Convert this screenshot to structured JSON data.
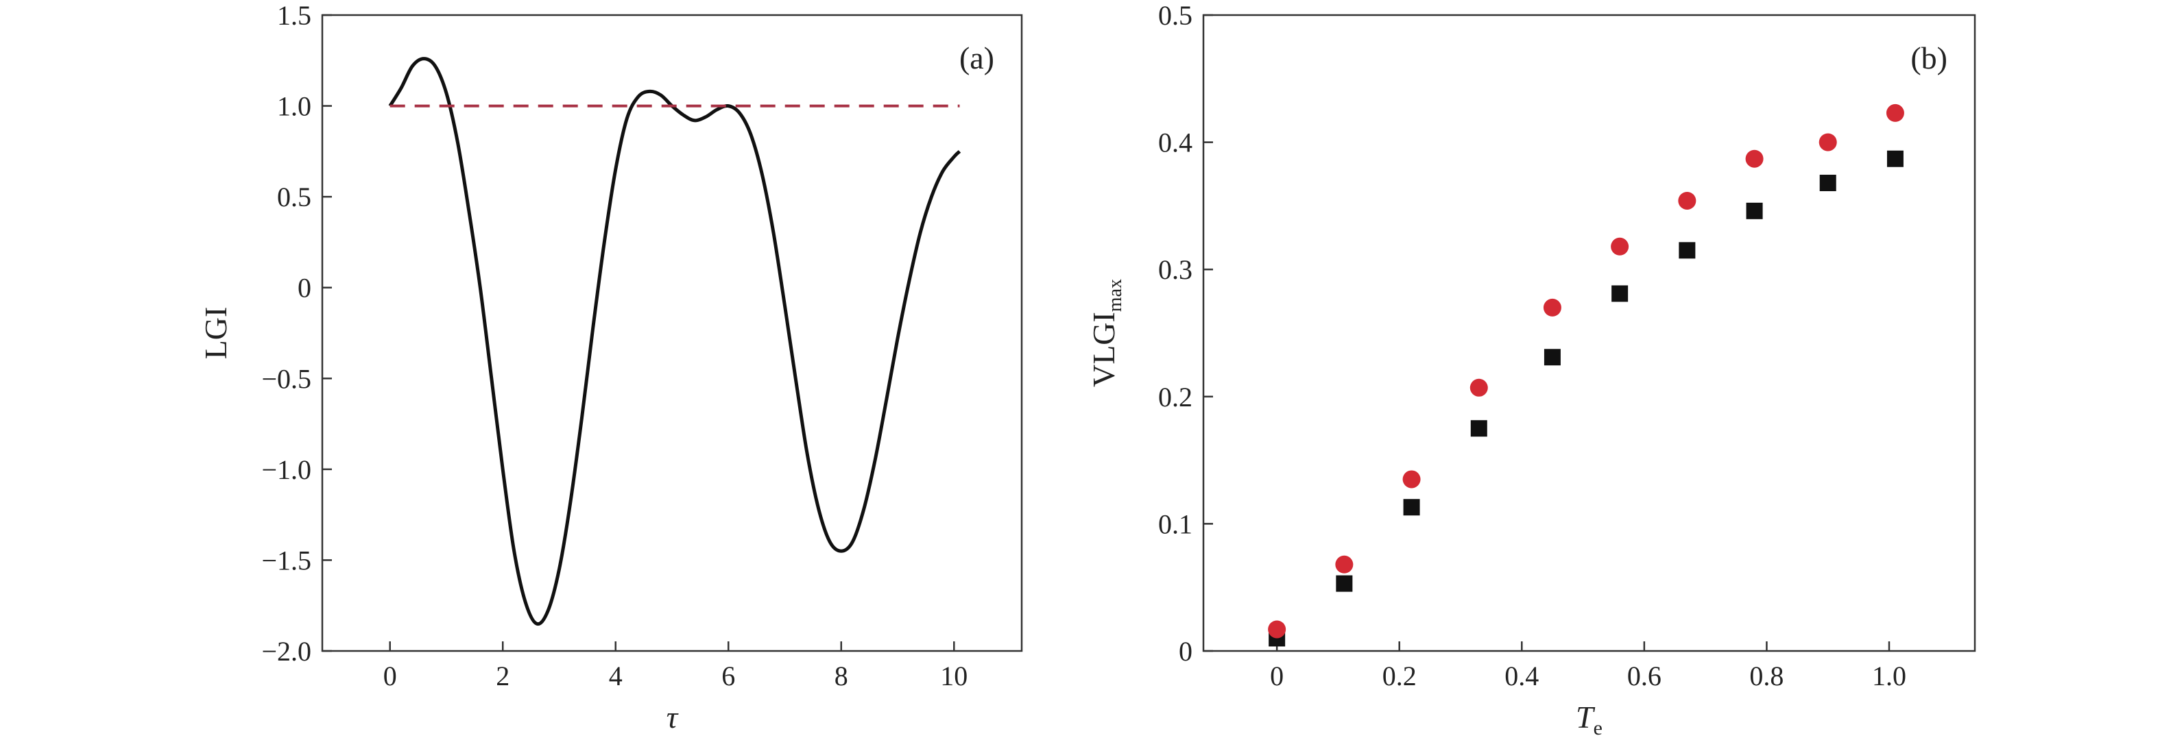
{
  "chart_data": [
    {
      "type": "line",
      "panel_label": "(a)",
      "xlabel": "τ",
      "ylabel": "LGI",
      "xlim": [
        -1.2,
        11.2
      ],
      "ylim": [
        -2.0,
        1.5
      ],
      "xticks": [
        0,
        2,
        4,
        6,
        8,
        10
      ],
      "xtick_labels": [
        "0",
        "2",
        "4",
        "6",
        "8",
        "10"
      ],
      "yticks": [
        -2.0,
        -1.5,
        -1.0,
        -0.5,
        0,
        0.5,
        1.0,
        1.5
      ],
      "ytick_labels": [
        "−2.0",
        "−1.5",
        "−1.0",
        "−0.5",
        "0",
        "0.5",
        "1.0",
        "1.5"
      ],
      "grid": false,
      "series": [
        {
          "style": "solid",
          "color": "#111111",
          "x": [
            0.0,
            0.2,
            0.4,
            0.6,
            0.8,
            1.0,
            1.2,
            1.4,
            1.6,
            1.8,
            2.0,
            2.2,
            2.4,
            2.6,
            2.8,
            3.0,
            3.2,
            3.4,
            3.6,
            3.8,
            4.0,
            4.2,
            4.4,
            4.6,
            4.8,
            5.0,
            5.2,
            5.4,
            5.6,
            5.8,
            6.0,
            6.2,
            6.4,
            6.6,
            6.8,
            7.0,
            7.2,
            7.4,
            7.6,
            7.8,
            8.0,
            8.2,
            8.4,
            8.6,
            8.8,
            9.0,
            9.2,
            9.4,
            9.6,
            9.8,
            10.0,
            10.1
          ],
          "y": [
            1.0,
            1.1,
            1.22,
            1.26,
            1.22,
            1.07,
            0.8,
            0.42,
            0.0,
            -0.5,
            -1.0,
            -1.45,
            -1.73,
            -1.85,
            -1.78,
            -1.55,
            -1.18,
            -0.72,
            -0.22,
            0.25,
            0.65,
            0.93,
            1.05,
            1.08,
            1.06,
            1.0,
            0.95,
            0.92,
            0.94,
            0.98,
            1.0,
            0.96,
            0.84,
            0.62,
            0.3,
            -0.1,
            -0.52,
            -0.92,
            -1.22,
            -1.4,
            -1.45,
            -1.4,
            -1.22,
            -0.95,
            -0.62,
            -0.28,
            0.03,
            0.3,
            0.5,
            0.64,
            0.72,
            0.75
          ]
        },
        {
          "style": "dashed",
          "color": "#a83245",
          "x": [
            0,
            10.1
          ],
          "y": [
            1.0,
            1.0
          ]
        }
      ]
    },
    {
      "type": "scatter",
      "panel_label": "(b)",
      "xlabel_main": "T",
      "xlabel_sub": "e",
      "ylabel_main": "VLGI",
      "ylabel_sub": "max",
      "xlim": [
        -0.12,
        1.14
      ],
      "ylim": [
        0,
        0.5
      ],
      "xticks": [
        0,
        0.2,
        0.4,
        0.6,
        0.8,
        1.0
      ],
      "xtick_labels": [
        "0",
        "0.2",
        "0.4",
        "0.6",
        "0.8",
        "1.0"
      ],
      "yticks": [
        0,
        0.1,
        0.2,
        0.3,
        0.4,
        0.5
      ],
      "ytick_labels": [
        "0",
        "0.1",
        "0.2",
        "0.3",
        "0.4",
        "0.5"
      ],
      "grid": false,
      "series": [
        {
          "marker": "circle",
          "color": "#d42a34",
          "x": [
            0,
            0.11,
            0.22,
            0.33,
            0.45,
            0.56,
            0.67,
            0.78,
            0.9,
            1.01
          ],
          "y": [
            0.017,
            0.068,
            0.135,
            0.207,
            0.27,
            0.318,
            0.354,
            0.387,
            0.4,
            0.423
          ]
        },
        {
          "marker": "square",
          "color": "#111111",
          "x": [
            0,
            0.11,
            0.22,
            0.33,
            0.45,
            0.56,
            0.67,
            0.78,
            0.9,
            1.01
          ],
          "y": [
            0.01,
            0.053,
            0.113,
            0.175,
            0.231,
            0.281,
            0.315,
            0.346,
            0.368,
            0.387
          ]
        }
      ]
    }
  ]
}
